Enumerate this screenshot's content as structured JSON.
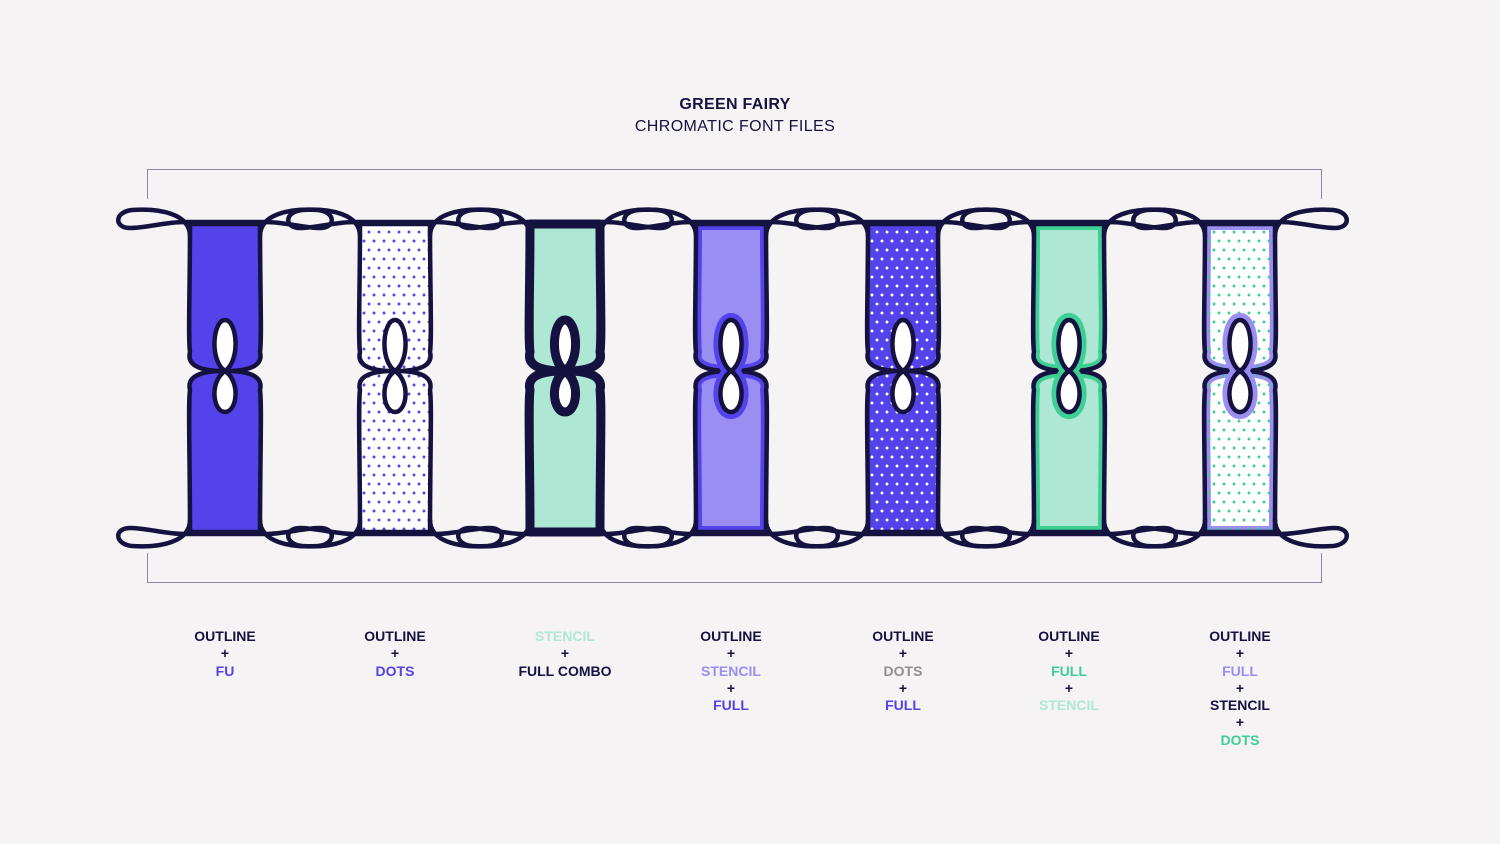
{
  "header": {
    "title": "GREEN FAIRY",
    "subtitle": "CHROMATIC FONT FILES"
  },
  "colors": {
    "navy": "#15123f",
    "blue": "#5443ea",
    "lavender": "#9a8ef2",
    "mint": "#aee8d4",
    "green": "#3dcf94",
    "white": "#ffffff",
    "grey": "#8f8f8f"
  },
  "variants": [
    {
      "name": "outline-fu",
      "fill": "blue",
      "dots": false,
      "dot_color": null,
      "inner_ring": null,
      "outline": "thin",
      "caption": [
        {
          "text": "OUTLINE",
          "color": "navy"
        },
        {
          "text": "+",
          "color": "navy"
        },
        {
          "text": "FU",
          "color": "blue"
        }
      ]
    },
    {
      "name": "outline-dots",
      "fill": "white",
      "dots": true,
      "dot_color": "blue",
      "inner_ring": null,
      "outline": "thin",
      "caption": [
        {
          "text": "OUTLINE",
          "color": "navy"
        },
        {
          "text": "+",
          "color": "navy"
        },
        {
          "text": "DOTS",
          "color": "blue"
        }
      ]
    },
    {
      "name": "stencil-full-combo",
      "fill": "mint",
      "dots": false,
      "dot_color": null,
      "inner_ring": null,
      "outline": "thick",
      "caption": [
        {
          "text": "STENCIL",
          "color": "mint"
        },
        {
          "text": "+",
          "color": "navy"
        },
        {
          "text": "FULL COMBO",
          "color": "navy"
        }
      ]
    },
    {
      "name": "outline-stencil-full",
      "fill": "lavender",
      "dots": false,
      "dot_color": null,
      "inner_ring": "blue",
      "outline": "thin",
      "caption": [
        {
          "text": "OUTLINE",
          "color": "navy"
        },
        {
          "text": "+",
          "color": "navy"
        },
        {
          "text": "STENCIL",
          "color": "lavender"
        },
        {
          "text": "+",
          "color": "navy"
        },
        {
          "text": "FULL",
          "color": "blue"
        }
      ]
    },
    {
      "name": "outline-dots-full",
      "fill": "blue",
      "dots": true,
      "dot_color": "white",
      "inner_ring": null,
      "outline": "thin",
      "caption": [
        {
          "text": "OUTLINE",
          "color": "navy"
        },
        {
          "text": "+",
          "color": "navy"
        },
        {
          "text": "DOTS",
          "color": "grey"
        },
        {
          "text": "+",
          "color": "navy"
        },
        {
          "text": "FULL",
          "color": "blue"
        }
      ]
    },
    {
      "name": "outline-full-stencil",
      "fill": "mint",
      "dots": false,
      "dot_color": null,
      "inner_ring": "green",
      "outline": "thin",
      "caption": [
        {
          "text": "OUTLINE",
          "color": "navy"
        },
        {
          "text": "+",
          "color": "navy"
        },
        {
          "text": "FULL",
          "color": "green"
        },
        {
          "text": "+",
          "color": "navy"
        },
        {
          "text": "STENCIL",
          "color": "mint"
        }
      ]
    },
    {
      "name": "outline-full-stencil-dots",
      "fill": "white",
      "dots": true,
      "dot_color": "green",
      "inner_ring": "lavender",
      "outline": "thin",
      "caption": [
        {
          "text": "OUTLINE",
          "color": "navy"
        },
        {
          "text": "+",
          "color": "navy"
        },
        {
          "text": "FULL",
          "color": "lavender"
        },
        {
          "text": "+",
          "color": "navy"
        },
        {
          "text": "STENCIL",
          "color": "navy"
        },
        {
          "text": "+",
          "color": "navy"
        },
        {
          "text": "DOTS",
          "color": "green"
        }
      ]
    }
  ]
}
